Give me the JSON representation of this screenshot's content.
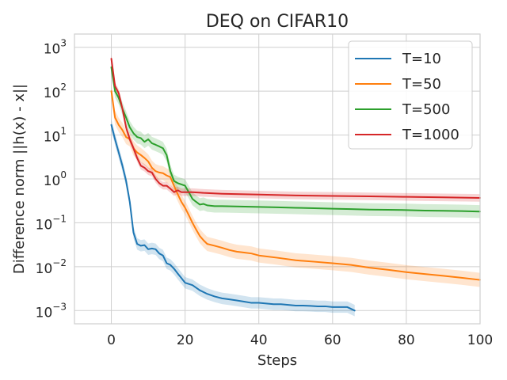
{
  "chart_data": {
    "type": "line",
    "title": "DEQ on CIFAR10",
    "xlabel": "Steps",
    "ylabel": "Difference norm ||h(x) - x||",
    "xlim": [
      -10,
      100
    ],
    "ylim": [
      0.0005,
      2000
    ],
    "yscale": "log",
    "grid": true,
    "legend_position": "top-right",
    "x_ticks": [
      0,
      20,
      40,
      60,
      80,
      100
    ],
    "x_tick_labels": [
      "0",
      "20",
      "40",
      "60",
      "80",
      "100"
    ],
    "y_ticks": [
      0.001,
      0.01,
      0.1,
      1,
      10,
      100,
      1000
    ],
    "y_tick_labels": [
      {
        "base": "10",
        "exp": "−3"
      },
      {
        "base": "10",
        "exp": "−2"
      },
      {
        "base": "10",
        "exp": "−1"
      },
      {
        "base": "10",
        "exp": "0"
      },
      {
        "base": "10",
        "exp": "1"
      },
      {
        "base": "10",
        "exp": "2"
      },
      {
        "base": "10",
        "exp": "3"
      }
    ],
    "series": [
      {
        "name": "T=10",
        "color": "#1f77b4",
        "band_factor": 1.35,
        "x": [
          0,
          1,
          2,
          3,
          4,
          5,
          6,
          7,
          8,
          9,
          10,
          11,
          12,
          13,
          14,
          15,
          16,
          17,
          18,
          19,
          20,
          22,
          24,
          26,
          28,
          30,
          32,
          34,
          36,
          38,
          40,
          42,
          44,
          46,
          48,
          50,
          52,
          54,
          56,
          58,
          60,
          62,
          64,
          66
        ],
        "y": [
          17,
          8,
          4,
          2,
          0.9,
          0.3,
          0.06,
          0.033,
          0.03,
          0.031,
          0.025,
          0.026,
          0.025,
          0.02,
          0.018,
          0.012,
          0.011,
          0.009,
          0.007,
          0.0055,
          0.0043,
          0.0038,
          0.0029,
          0.0024,
          0.0021,
          0.0019,
          0.0018,
          0.0017,
          0.0016,
          0.0015,
          0.0015,
          0.00145,
          0.0014,
          0.0014,
          0.00135,
          0.0013,
          0.0013,
          0.00128,
          0.00125,
          0.00125,
          0.0012,
          0.0012,
          0.0012,
          0.001
        ]
      },
      {
        "name": "T=50",
        "color": "#ff7f0e",
        "band_factor": 1.45,
        "x": [
          0,
          1,
          2,
          3,
          4,
          5,
          6,
          7,
          8,
          9,
          10,
          11,
          12,
          13,
          14,
          15,
          16,
          17,
          18,
          19,
          20,
          21,
          22,
          23,
          24,
          25,
          26,
          28,
          30,
          32,
          34,
          36,
          38,
          40,
          45,
          50,
          55,
          60,
          65,
          70,
          75,
          80,
          85,
          90,
          95,
          100
        ],
        "y": [
          100,
          25,
          17,
          13,
          9,
          8,
          5,
          4,
          3.5,
          3,
          2.5,
          1.8,
          1.5,
          1.4,
          1.35,
          1.2,
          1.1,
          0.7,
          0.45,
          0.3,
          0.22,
          0.15,
          0.1,
          0.07,
          0.05,
          0.04,
          0.033,
          0.03,
          0.027,
          0.024,
          0.022,
          0.021,
          0.02,
          0.018,
          0.016,
          0.014,
          0.013,
          0.012,
          0.011,
          0.0095,
          0.0085,
          0.0075,
          0.0068,
          0.0062,
          0.0056,
          0.005
        ]
      },
      {
        "name": "T=500",
        "color": "#2ca02c",
        "band_factor": 1.4,
        "x": [
          0,
          1,
          2,
          3,
          4,
          5,
          6,
          7,
          8,
          9,
          10,
          11,
          12,
          13,
          14,
          15,
          16,
          17,
          18,
          19,
          20,
          21,
          22,
          23,
          24,
          25,
          26,
          28,
          30,
          35,
          40,
          45,
          50,
          55,
          60,
          65,
          70,
          75,
          80,
          85,
          90,
          95,
          100
        ],
        "y": [
          350,
          100,
          70,
          40,
          25,
          15,
          11,
          9,
          8.5,
          7,
          8,
          6.5,
          6,
          5.5,
          5,
          3.5,
          1.5,
          0.9,
          0.8,
          0.75,
          0.7,
          0.5,
          0.35,
          0.3,
          0.26,
          0.27,
          0.25,
          0.24,
          0.24,
          0.235,
          0.23,
          0.225,
          0.22,
          0.215,
          0.21,
          0.205,
          0.2,
          0.198,
          0.195,
          0.19,
          0.188,
          0.185,
          0.18
        ]
      },
      {
        "name": "T=1000",
        "color": "#d62728",
        "band_factor": 1.22,
        "x": [
          0,
          1,
          2,
          3,
          4,
          5,
          6,
          7,
          8,
          9,
          10,
          11,
          12,
          13,
          14,
          15,
          16,
          17,
          18,
          19,
          20,
          22,
          25,
          30,
          40,
          50,
          60,
          70,
          80,
          90,
          100
        ],
        "y": [
          550,
          130,
          90,
          40,
          15,
          8,
          5,
          3,
          2,
          1.8,
          1.5,
          1.4,
          1,
          0.8,
          0.7,
          0.7,
          0.6,
          0.5,
          0.55,
          0.5,
          0.5,
          0.5,
          0.48,
          0.46,
          0.44,
          0.42,
          0.41,
          0.4,
          0.39,
          0.38,
          0.37
        ]
      }
    ]
  }
}
